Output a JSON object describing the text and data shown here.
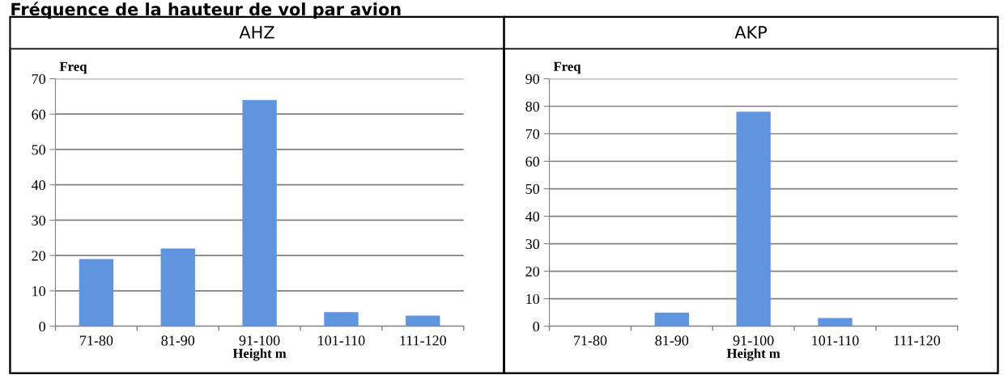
{
  "chart_data": [
    {
      "type": "bar",
      "title": "AHZ",
      "annotations": [
        "Fréquence de la hauteur de vol par avion"
      ],
      "ylabel": "Freq",
      "xlabel": "Height m",
      "categories": [
        "71-80",
        "81-90",
        "91-100",
        "101-110",
        "111-120"
      ],
      "values": [
        19,
        22,
        64,
        4,
        3
      ],
      "color": "#5f95de",
      "ylim": [
        0,
        70
      ],
      "yticks": [
        0,
        10,
        20,
        30,
        40,
        50,
        60,
        70
      ],
      "grid": "y"
    },
    {
      "type": "bar",
      "title": "AKP",
      "ylabel": "Freq",
      "xlabel": "Height m",
      "categories": [
        "71-80",
        "81-90",
        "91-100",
        "101-110",
        "111-120"
      ],
      "values": [
        0,
        5,
        78,
        3,
        0
      ],
      "color": "#5f95de",
      "ylim": [
        0,
        90
      ],
      "yticks": [
        0,
        10,
        20,
        30,
        40,
        50,
        60,
        70,
        80,
        90
      ],
      "grid": "y"
    }
  ]
}
